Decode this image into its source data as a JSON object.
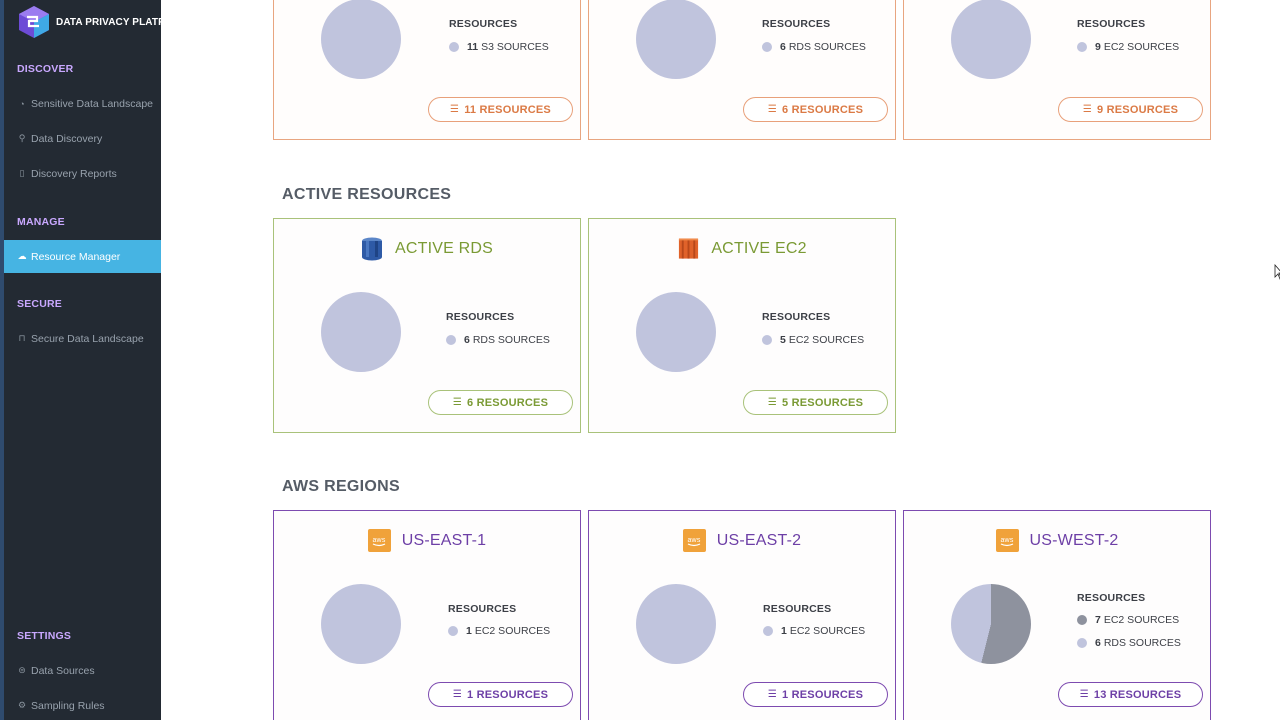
{
  "brand": {
    "name": "DATA PRIVACY PLATFORM"
  },
  "sidebar": {
    "sections": [
      {
        "title": "DISCOVER",
        "items": [
          {
            "label": "Sensitive Data Landscape",
            "icon": "pie-icon"
          },
          {
            "label": "Data Discovery",
            "icon": "search-icon"
          },
          {
            "label": "Discovery Reports",
            "icon": "document-icon"
          }
        ]
      },
      {
        "title": "MANAGE",
        "items": [
          {
            "label": "Resource Manager",
            "icon": "cloud-icon",
            "active": true
          }
        ]
      },
      {
        "title": "SECURE",
        "items": [
          {
            "label": "Secure Data Landscape",
            "icon": "lock-icon"
          }
        ]
      },
      {
        "title": "SETTINGS",
        "items": [
          {
            "label": "Data Sources",
            "icon": "database-icon"
          },
          {
            "label": "Sampling Rules",
            "icon": "gear-icon"
          }
        ]
      }
    ]
  },
  "common": {
    "resources_label": "RESOURCES"
  },
  "top_cards": [
    {
      "legend": [
        {
          "count": "11",
          "label": "S3 SOURCES"
        }
      ],
      "button": "11 RESOURCES"
    },
    {
      "legend": [
        {
          "count": "6",
          "label": "RDS SOURCES"
        }
      ],
      "button": "6 RESOURCES"
    },
    {
      "legend": [
        {
          "count": "9",
          "label": "EC2 SOURCES"
        }
      ],
      "button": "9 RESOURCES"
    }
  ],
  "active_resources": {
    "title": "ACTIVE RESOURCES",
    "cards": [
      {
        "title": "ACTIVE RDS",
        "icon": "rds-icon",
        "legend": [
          {
            "count": "6",
            "label": "RDS SOURCES"
          }
        ],
        "button": "6 RESOURCES"
      },
      {
        "title": "ACTIVE EC2",
        "icon": "ec2-icon",
        "legend": [
          {
            "count": "5",
            "label": "EC2 SOURCES"
          }
        ],
        "button": "5 RESOURCES"
      }
    ]
  },
  "aws_regions": {
    "title": "AWS REGIONS",
    "cards": [
      {
        "title": "US-EAST-1",
        "icon": "aws-icon",
        "legend": [
          {
            "count": "1",
            "label": "EC2 SOURCES"
          }
        ],
        "button": "1 RESOURCES"
      },
      {
        "title": "US-EAST-2",
        "icon": "aws-icon",
        "legend": [
          {
            "count": "1",
            "label": "EC2 SOURCES"
          }
        ],
        "button": "1 RESOURCES"
      },
      {
        "title": "US-WEST-2",
        "icon": "aws-icon",
        "legend": [
          {
            "count": "7",
            "label": "EC2 SOURCES"
          },
          {
            "count": "6",
            "label": "RDS SOURCES"
          }
        ],
        "button": "13 RESOURCES"
      }
    ]
  },
  "colors": {
    "sidebar_bg": "#232a33",
    "sidebar_active": "#46b4e3",
    "section_label": "#c9a8ff",
    "orange_accent": "#db7a45",
    "green_accent": "#7a9a34",
    "purple_accent": "#6d3fa6",
    "pie_light": "#c0c4dd",
    "pie_dark": "#8e929e"
  }
}
